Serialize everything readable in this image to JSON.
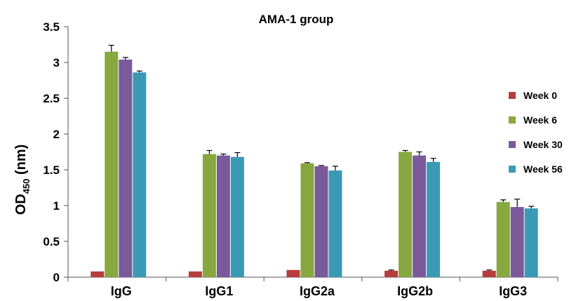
{
  "chart_data": {
    "type": "bar",
    "title": "AMA-1 group",
    "ylabel": "OD",
    "ylabel_subscript": "450",
    "ylabel_unit": "(nm)",
    "xlabel": "",
    "ylim": [
      0,
      3.5
    ],
    "yticks": [
      0,
      0.5,
      1,
      1.5,
      2,
      2.5,
      3,
      3.5
    ],
    "ytick_labels": [
      "0",
      "0.5",
      "1",
      "1.5",
      "2",
      "2.5",
      "3",
      "3.5"
    ],
    "grid": false,
    "legend_position": "right",
    "categories": [
      "IgG",
      "IgG1",
      "IgG2a",
      "IgG2b",
      "IgG3"
    ],
    "series": [
      {
        "name": "Week 0",
        "color": "#b83c3c",
        "values": [
          0.08,
          0.08,
          0.1,
          0.09,
          0.09
        ],
        "errors": [
          0.0,
          0.0,
          0.0,
          0.01,
          0.01
        ]
      },
      {
        "name": "Week 6",
        "color": "#86a83e",
        "values": [
          3.15,
          1.72,
          1.59,
          1.75,
          1.05
        ],
        "errors": [
          0.09,
          0.05,
          0.01,
          0.02,
          0.03
        ]
      },
      {
        "name": "Week 30",
        "color": "#7a5a9a",
        "values": [
          3.04,
          1.7,
          1.55,
          1.7,
          0.98
        ],
        "errors": [
          0.03,
          0.02,
          0.01,
          0.05,
          0.11
        ]
      },
      {
        "name": "Week 56",
        "color": "#3a9ab5",
        "values": [
          2.86,
          1.68,
          1.49,
          1.61,
          0.96
        ],
        "errors": [
          0.02,
          0.06,
          0.06,
          0.05,
          0.03
        ]
      }
    ]
  }
}
